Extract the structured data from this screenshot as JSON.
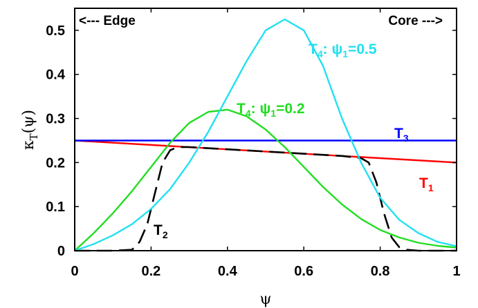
{
  "chart_data": {
    "type": "line",
    "xlabel": "ψ",
    "ylabel_main": "κ",
    "ylabel_sub": "T",
    "ylabel_tail": "(ψ)",
    "xlim": [
      0,
      1
    ],
    "ylim": [
      0,
      0.55
    ],
    "xticks": [
      "0",
      "0.2",
      "0.4",
      "0.6",
      "0.8",
      "1"
    ],
    "yticks": [
      "0",
      "0.1",
      "0.2",
      "0.3",
      "0.4",
      "0.5"
    ],
    "grid": false,
    "annotations": {
      "edge": "<--- Edge",
      "core": "Core --->"
    },
    "series": [
      {
        "key": "T1",
        "label_main": "T",
        "label_sub": "1",
        "color": "#ff0000",
        "dash": "solid",
        "x": [
          0,
          1
        ],
        "y": [
          0.25,
          0.2
        ]
      },
      {
        "key": "T3",
        "label_main": "T",
        "label_sub": "3",
        "color": "#0000ff",
        "dash": "solid",
        "x": [
          0,
          1
        ],
        "y": [
          0.25,
          0.25
        ]
      },
      {
        "key": "T2",
        "label_main": "T",
        "label_sub": "2",
        "color": "#000000",
        "dash": "dashed",
        "x": [
          0,
          0.1,
          0.15,
          0.17,
          0.19,
          0.21,
          0.23,
          0.25,
          0.27,
          0.3,
          0.4,
          0.5,
          0.6,
          0.7,
          0.75,
          0.77,
          0.79,
          0.81,
          0.83,
          0.85,
          0.87,
          0.9,
          1.0
        ],
        "y": [
          0,
          0,
          0.002,
          0.02,
          0.06,
          0.13,
          0.2,
          0.228,
          0.235,
          0.235,
          0.23,
          0.225,
          0.22,
          0.215,
          0.21,
          0.2,
          0.155,
          0.085,
          0.03,
          0.008,
          0.002,
          0,
          0
        ]
      },
      {
        "key": "T4a",
        "label_main": "T",
        "label_sub": "4",
        "label_tail": ": ψ",
        "label_sub2": "1",
        "label_value": "=0.2",
        "color": "#22dd22",
        "dash": "solid",
        "x": [
          0,
          0.05,
          0.1,
          0.15,
          0.2,
          0.25,
          0.3,
          0.35,
          0.4,
          0.45,
          0.5,
          0.55,
          0.6,
          0.65,
          0.7,
          0.75,
          0.8,
          0.85,
          0.9,
          0.95,
          1.0
        ],
        "y": [
          0,
          0.04,
          0.085,
          0.135,
          0.19,
          0.245,
          0.29,
          0.315,
          0.32,
          0.305,
          0.275,
          0.235,
          0.19,
          0.145,
          0.105,
          0.072,
          0.047,
          0.03,
          0.018,
          0.011,
          0.007
        ]
      },
      {
        "key": "T4b",
        "label_main": "T",
        "label_sub": "4",
        "label_tail": ": ψ",
        "label_sub2": "1",
        "label_value": "=0.5",
        "color": "#22e0f0",
        "dash": "solid",
        "x": [
          0,
          0.05,
          0.1,
          0.15,
          0.2,
          0.25,
          0.3,
          0.35,
          0.4,
          0.45,
          0.5,
          0.55,
          0.6,
          0.65,
          0.7,
          0.75,
          0.8,
          0.85,
          0.9,
          0.95,
          1.0
        ],
        "y": [
          0,
          0.015,
          0.035,
          0.06,
          0.095,
          0.14,
          0.2,
          0.27,
          0.35,
          0.43,
          0.5,
          0.525,
          0.5,
          0.42,
          0.3,
          0.2,
          0.12,
          0.07,
          0.04,
          0.02,
          0.01
        ]
      }
    ]
  }
}
